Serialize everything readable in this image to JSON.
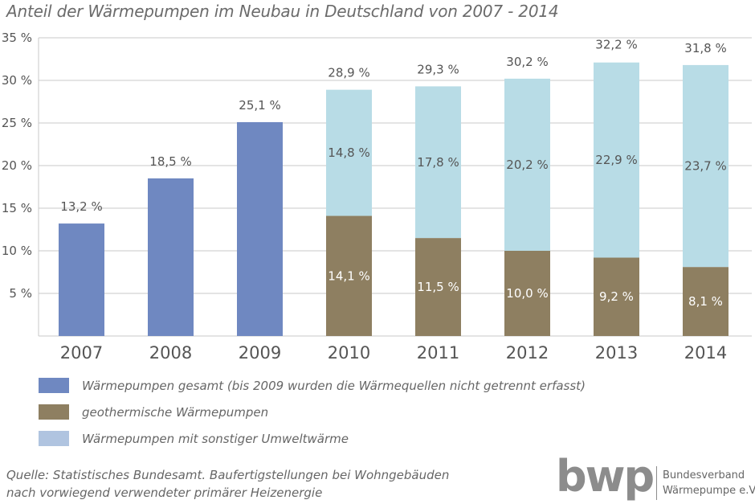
{
  "title": "Anteil der Wärmepumpen im Neubau in Deutschland von 2007 - 2014",
  "colors": {
    "gesamt": "#6f88c1",
    "geothermisch": "#8e7f61",
    "umwelt": "#b8dce6",
    "umwelt_legend": "#b0c4e0",
    "grid": "#c8c8c8",
    "axis_text": "#555555"
  },
  "chart_data": {
    "type": "bar",
    "stacked": true,
    "categories": [
      "2007",
      "2008",
      "2009",
      "2010",
      "2011",
      "2012",
      "2013",
      "2014"
    ],
    "ylim": [
      0,
      35
    ],
    "yticks": [
      5,
      10,
      15,
      20,
      25,
      30,
      35
    ],
    "ytick_labels": [
      "5 %",
      "10 %",
      "15 %",
      "20 %",
      "25 %",
      "30 %",
      "35 %"
    ],
    "grid": true,
    "series": [
      {
        "name": "Wärmepumpen gesamt (bis 2009 wurden die Wärmequellen nicht getrennt erfasst)",
        "values": [
          13.2,
          18.5,
          25.1,
          null,
          null,
          null,
          null,
          null
        ]
      },
      {
        "name": "geothermische Wärmepumpen",
        "values": [
          null,
          null,
          null,
          14.1,
          11.5,
          10.0,
          9.2,
          8.1
        ]
      },
      {
        "name": "Wärmepumpen mit sonstiger Umweltwärme",
        "values": [
          null,
          null,
          null,
          14.8,
          17.8,
          20.2,
          22.9,
          23.7
        ]
      }
    ],
    "totals": [
      13.2,
      18.5,
      25.1,
      28.9,
      29.3,
      30.2,
      32.2,
      31.8
    ],
    "total_labels": [
      "13,2 %",
      "18,5 %",
      "25,1 %",
      "28,9 %",
      "29,3 %",
      "30,2 %",
      "32,2 %",
      "31,8 %"
    ],
    "geo_labels": [
      "",
      "",
      "",
      "14,1 %",
      "11,5 %",
      "10,0 %",
      "9,2 %",
      "8,1 %"
    ],
    "umwelt_labels": [
      "",
      "",
      "",
      "14,8 %",
      "17,8 %",
      "20,2 %",
      "22,9 %",
      "23,7 %"
    ]
  },
  "legend": [
    {
      "label": "Wärmepumpen gesamt (bis 2009 wurden die Wärmequellen nicht getrennt erfasst)",
      "color_key": "gesamt"
    },
    {
      "label": "geothermische Wärmepumpen",
      "color_key": "geothermisch"
    },
    {
      "label": "Wärmepumpen mit sonstiger Umweltwärme",
      "color_key": "umwelt_legend"
    }
  ],
  "source": {
    "line1": "Quelle: Statistisches Bundesamt. Baufertigstellungen bei Wohngebäuden",
    "line2": "nach vorwiegend verwendeter primärer Heizenergie"
  },
  "logo": {
    "word": "bwp",
    "line1": "Bundesverband",
    "line2": "Wärmepumpe e.V."
  }
}
